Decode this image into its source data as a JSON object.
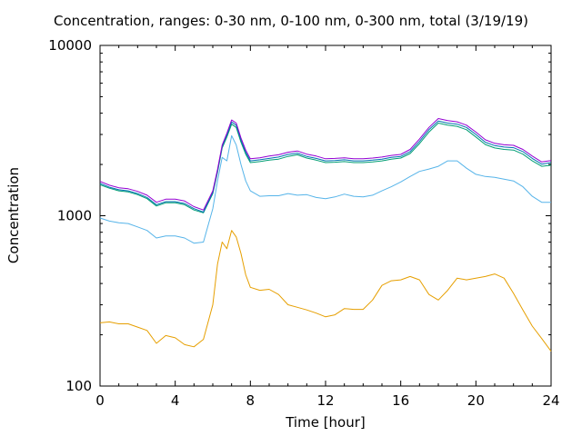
{
  "chart_data": {
    "type": "line",
    "title": "Concentration, ranges: 0-30 nm, 0-100 nm, 0-300 nm, total (3/19/19)",
    "xlabel": "Time [hour]",
    "ylabel": "Concentration",
    "xlim": [
      0,
      24
    ],
    "ylim": [
      100,
      10000
    ],
    "yscale": "log",
    "x_ticks": [
      0,
      4,
      8,
      12,
      16,
      20,
      24
    ],
    "x_tick_labels": [
      "0",
      "4",
      "8",
      "12",
      "16",
      "20",
      "24"
    ],
    "y_ticks": [
      100,
      1000,
      10000
    ],
    "y_tick_labels": [
      "100",
      "1000",
      "10000"
    ],
    "grid": false,
    "legend": "none",
    "x": [
      0,
      0.5,
      1,
      1.5,
      2,
      2.5,
      3,
      3.5,
      4,
      4.5,
      5,
      5.5,
      6,
      6.25,
      6.5,
      6.75,
      7,
      7.25,
      7.5,
      7.75,
      8,
      8.5,
      9,
      9.5,
      10,
      10.5,
      11,
      11.5,
      12,
      12.5,
      13,
      13.5,
      14,
      14.5,
      15,
      15.5,
      16,
      16.5,
      17,
      17.5,
      18,
      18.5,
      19,
      19.5,
      20,
      20.5,
      21,
      21.5,
      22,
      22.5,
      23,
      23.5,
      24
    ],
    "series": [
      {
        "color": "#e69f00",
        "values": [
          235,
          238,
          232,
          232,
          222,
          212,
          178,
          198,
          192,
          175,
          170,
          188,
          300,
          520,
          700,
          640,
          820,
          750,
          600,
          450,
          380,
          365,
          370,
          345,
          300,
          290,
          280,
          268,
          255,
          262,
          285,
          282,
          282,
          320,
          390,
          415,
          420,
          440,
          420,
          345,
          320,
          365,
          430,
          420,
          430,
          440,
          455,
          430,
          350,
          280,
          225,
          190,
          160
        ]
      },
      {
        "color": "#56b4e9",
        "values": [
          970,
          930,
          910,
          900,
          860,
          820,
          740,
          760,
          760,
          740,
          690,
          700,
          1100,
          1600,
          2200,
          2100,
          2950,
          2600,
          2000,
          1600,
          1400,
          1300,
          1310,
          1310,
          1350,
          1320,
          1330,
          1280,
          1260,
          1290,
          1340,
          1300,
          1290,
          1320,
          1400,
          1480,
          1580,
          1700,
          1820,
          1880,
          1950,
          2100,
          2100,
          1900,
          1750,
          1700,
          1680,
          1640,
          1600,
          1480,
          1300,
          1200,
          1200
        ]
      },
      {
        "color": "#009e73",
        "values": [
          1520,
          1450,
          1400,
          1380,
          1330,
          1260,
          1140,
          1190,
          1190,
          1160,
          1080,
          1040,
          1350,
          1800,
          2500,
          2900,
          3450,
          3300,
          2700,
          2300,
          2050,
          2080,
          2120,
          2150,
          2230,
          2280,
          2180,
          2120,
          2050,
          2060,
          2080,
          2050,
          2050,
          2070,
          2100,
          2150,
          2180,
          2320,
          2650,
          3100,
          3500,
          3400,
          3350,
          3200,
          2900,
          2620,
          2500,
          2450,
          2430,
          2300,
          2100,
          1950,
          1980
        ]
      },
      {
        "color": "#0072b2",
        "values": [
          1550,
          1470,
          1420,
          1400,
          1350,
          1280,
          1160,
          1210,
          1210,
          1180,
          1100,
          1050,
          1370,
          1830,
          2550,
          2980,
          3550,
          3400,
          2780,
          2360,
          2100,
          2130,
          2170,
          2210,
          2290,
          2330,
          2230,
          2170,
          2100,
          2110,
          2130,
          2100,
          2100,
          2120,
          2150,
          2200,
          2230,
          2380,
          2730,
          3200,
          3600,
          3500,
          3450,
          3300,
          3000,
          2700,
          2580,
          2530,
          2510,
          2380,
          2170,
          2010,
          2050
        ]
      },
      {
        "color": "#9400d3",
        "values": [
          1590,
          1510,
          1460,
          1440,
          1390,
          1320,
          1200,
          1250,
          1250,
          1220,
          1130,
          1080,
          1400,
          1870,
          2600,
          3050,
          3650,
          3500,
          2860,
          2430,
          2160,
          2190,
          2240,
          2280,
          2360,
          2400,
          2300,
          2240,
          2160,
          2170,
          2190,
          2160,
          2160,
          2180,
          2210,
          2260,
          2290,
          2450,
          2820,
          3300,
          3720,
          3620,
          3560,
          3400,
          3100,
          2790,
          2660,
          2610,
          2590,
          2450,
          2240,
          2070,
          2110
        ]
      }
    ]
  }
}
